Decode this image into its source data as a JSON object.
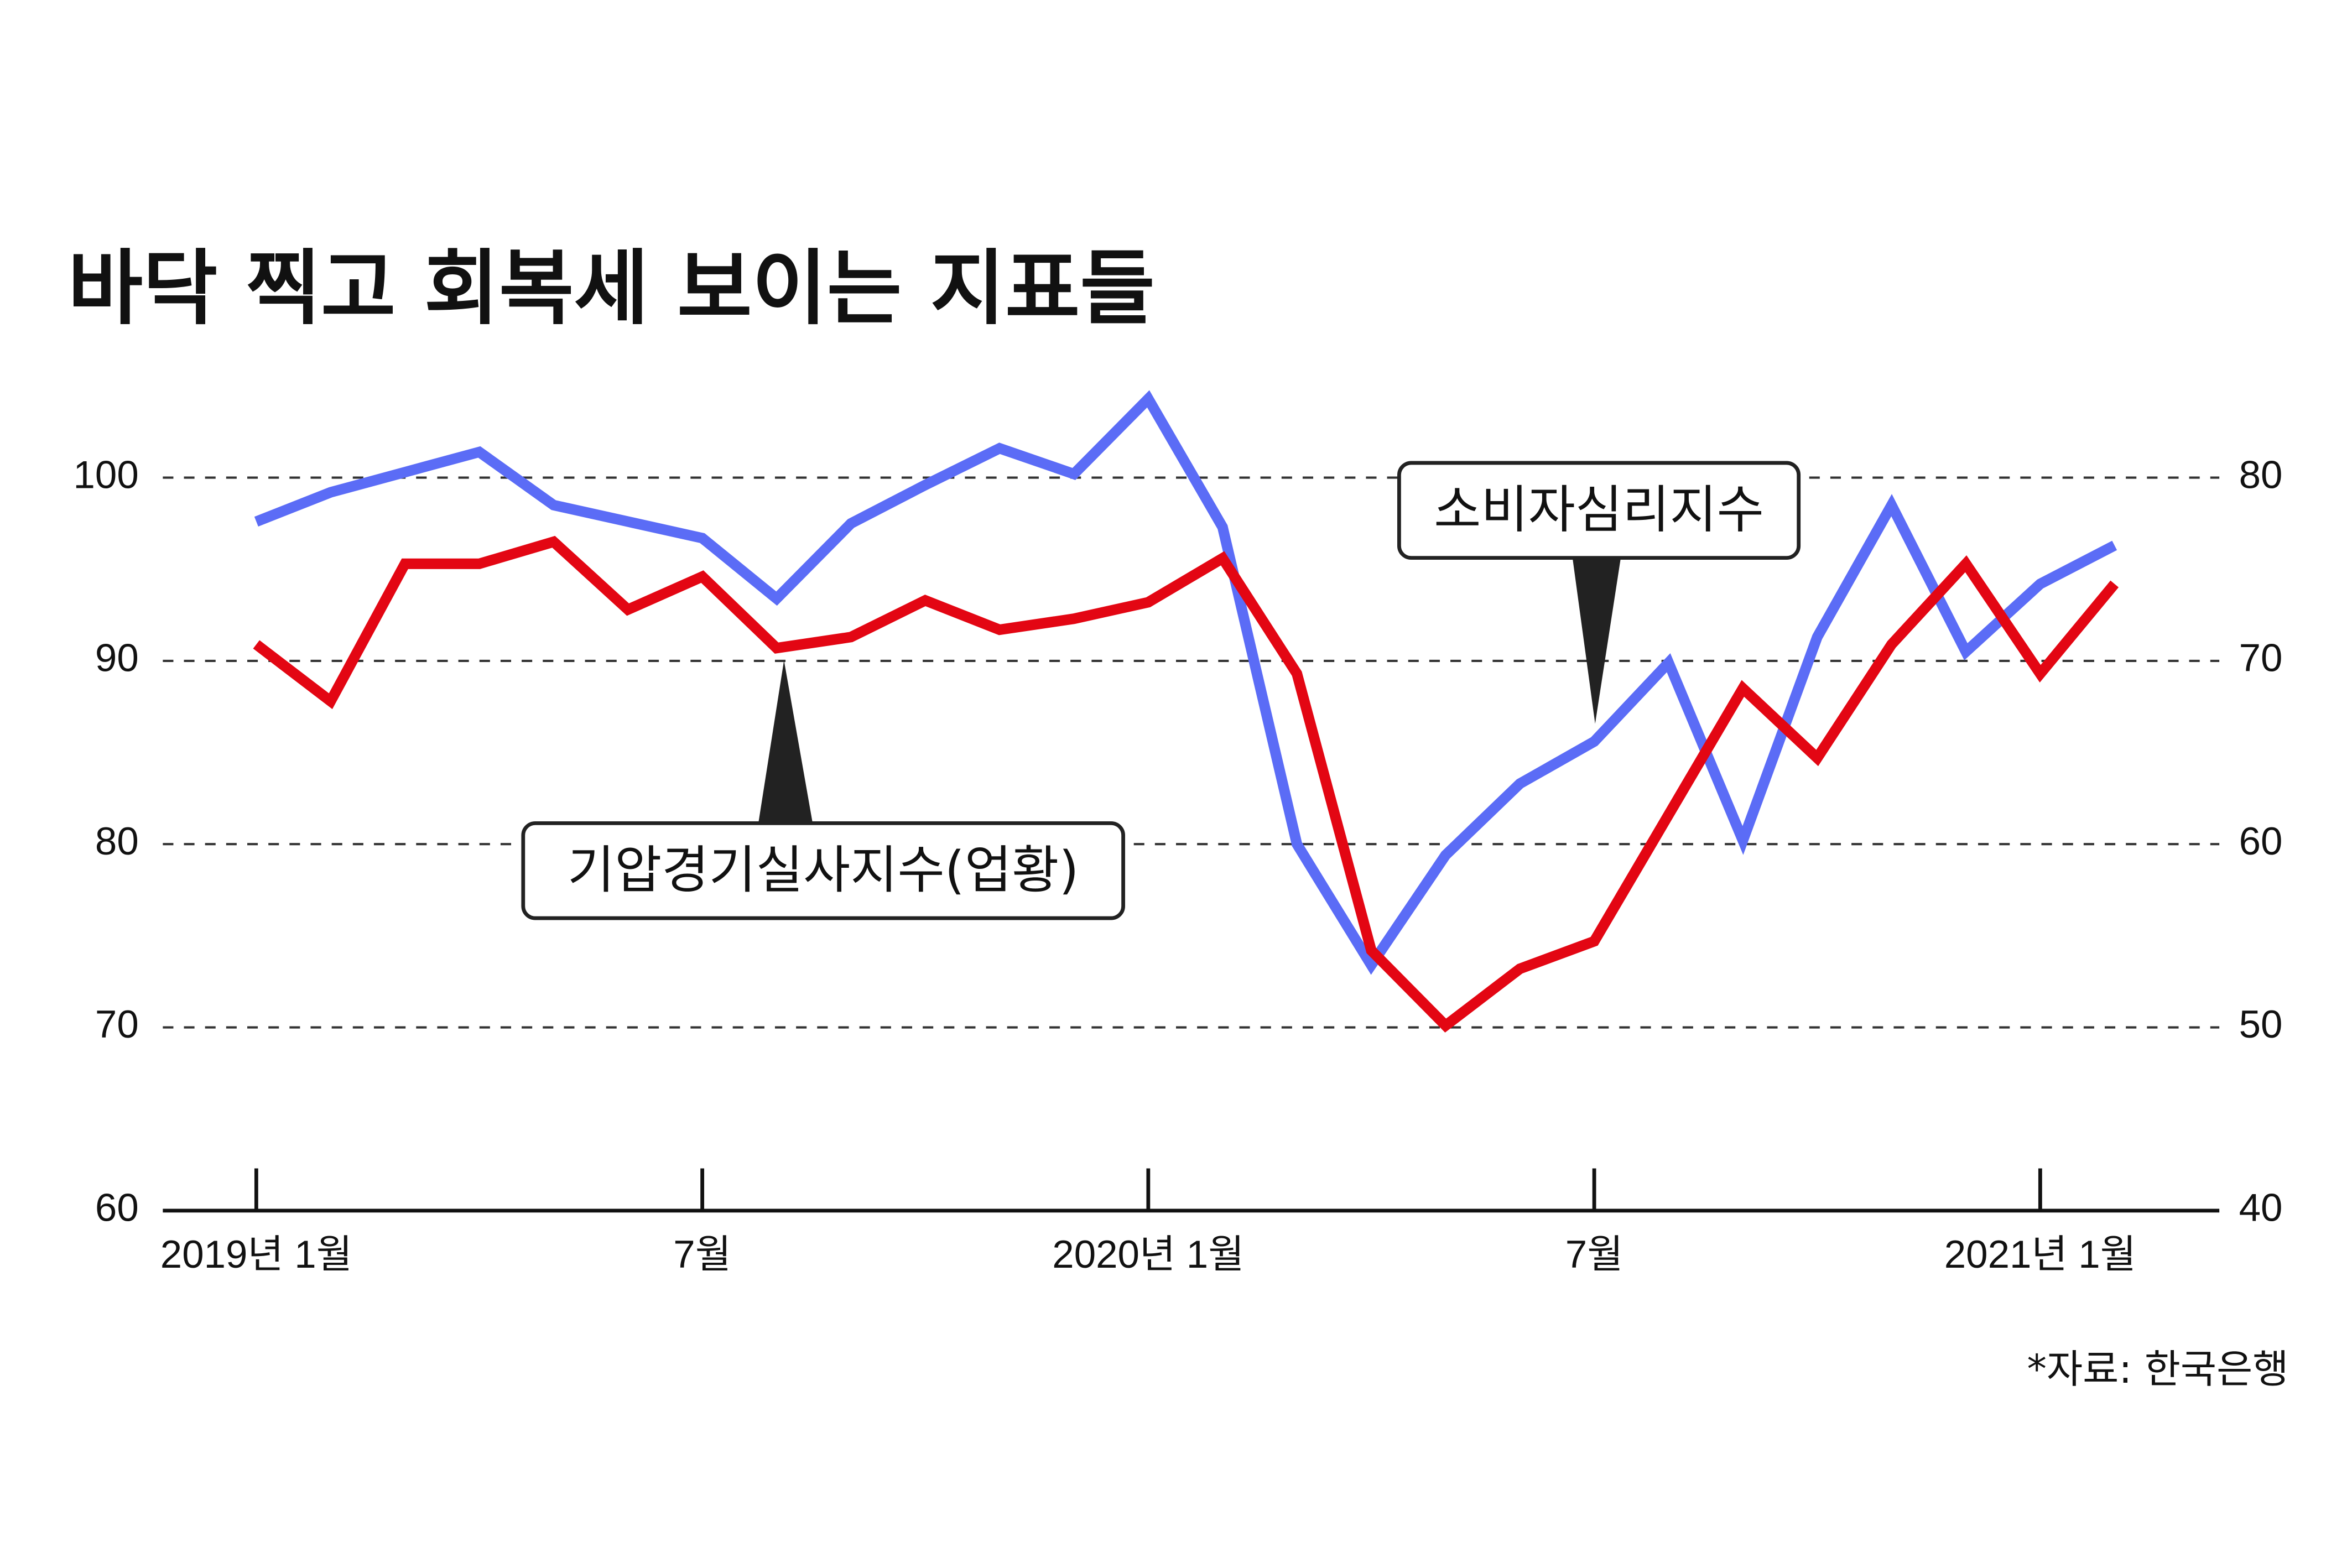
{
  "chart_data": {
    "type": "line",
    "title": "바닥 찍고 회복세 보이는 지표들",
    "source": "*자료: 한국은행",
    "categories": [
      "2019년 1월",
      null,
      null,
      null,
      null,
      null,
      "7월",
      null,
      null,
      null,
      null,
      null,
      "2020년 1월",
      null,
      null,
      null,
      null,
      null,
      "7월",
      null,
      null,
      null,
      null,
      null,
      "2021년 1월",
      null
    ],
    "series": [
      {
        "name": "소비자심리지수",
        "color": "#5b6cf6",
        "values": [
          97.6,
          99.2,
          100.3,
          101.4,
          98.5,
          97.6,
          96.7,
          93.4,
          97.5,
          99.6,
          101.6,
          100.2,
          104.3,
          97.3,
          80.0,
          73.4,
          79.4,
          83.3,
          85.6,
          89.9,
          80.2,
          91.3,
          98.5,
          90.5,
          94.2,
          96.3
        ]
      },
      {
        "name": "기압경기실사지수(업황)",
        "color": "#e30613",
        "axis": "y2",
        "values": [
          70.9,
          67.8,
          75.3,
          75.3,
          76.5,
          72.8,
          74.6,
          70.7,
          71.3,
          73.3,
          71.7,
          72.3,
          73.2,
          75.6,
          69.3,
          54.2,
          50.1,
          53.2,
          54.7,
          61.6,
          68.5,
          64.7,
          70.9,
          75.3,
          69.3,
          74.2
        ]
      }
    ],
    "ylim": [
      60,
      105
    ],
    "yticks": [
      60,
      70,
      80,
      90,
      100
    ],
    "y2lim": [
      40,
      85
    ],
    "y2ticks": [
      40,
      50,
      60,
      70,
      80
    ],
    "grid": true
  }
}
